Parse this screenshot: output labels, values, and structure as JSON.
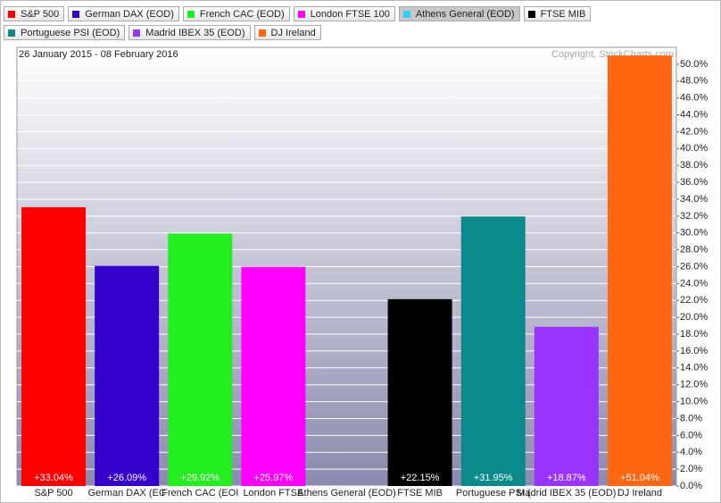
{
  "chart_data": {
    "type": "bar",
    "subtitle": "26 January 2015 - 08 February 2016",
    "credit": "Copyright, StockCharts.com",
    "legend": [
      {
        "name": "S&P 500",
        "color": "#ff0000"
      },
      {
        "name": "German DAX (EOD)",
        "color": "#3300cc"
      },
      {
        "name": "French CAC (EOD)",
        "color": "#22ee22"
      },
      {
        "name": "London FTSE 100",
        "color": "#ff00ff"
      },
      {
        "name": "Athens General (EOD)",
        "color": "#33ccff"
      },
      {
        "name": "FTSE MIB",
        "color": "#000000"
      },
      {
        "name": "Portuguese PSI (EOD)",
        "color": "#0a8a8a"
      },
      {
        "name": "Madrid IBEX 35 (EOD)",
        "color": "#9933ff"
      },
      {
        "name": "DJ Ireland",
        "color": "#ff6611"
      }
    ],
    "categories": [
      "S&P 500",
      "German DAX (EC",
      "French CAC (EOI",
      "London FTSE",
      "Athens General (EOD)",
      "FTSE MIB",
      "Portuguese PSI (",
      "Madrid IBEX 35 (EOD)",
      "DJ Ireland"
    ],
    "values": [
      33.04,
      26.09,
      29.92,
      25.97,
      null,
      22.15,
      31.95,
      18.87,
      51.04
    ],
    "value_labels": [
      "+33.04%",
      "+26.09%",
      "+29.92%",
      "+25.97%",
      null,
      "+22.15%",
      "+31.95%",
      "+18.87%",
      "+51.04%"
    ],
    "ylim": [
      0,
      52
    ],
    "yticks": [
      {
        "value": 0,
        "label": "0.0%"
      },
      {
        "value": 2,
        "label": "2.0%"
      },
      {
        "value": 4,
        "label": "4.0%"
      },
      {
        "value": 6,
        "label": "6.0%"
      },
      {
        "value": 8,
        "label": "8.0%"
      },
      {
        "value": 10,
        "label": "10.0%"
      },
      {
        "value": 12,
        "label": "12.0%"
      },
      {
        "value": 14,
        "label": "14.0%"
      },
      {
        "value": 16,
        "label": "16.0%"
      },
      {
        "value": 18,
        "label": "18.0%"
      },
      {
        "value": 20,
        "label": "20.0%"
      },
      {
        "value": 22,
        "label": "22.0%"
      },
      {
        "value": 24,
        "label": "24.0%"
      },
      {
        "value": 26,
        "label": "26.0%"
      },
      {
        "value": 28,
        "label": "28.0%"
      },
      {
        "value": 30,
        "label": "30.0%"
      },
      {
        "value": 32,
        "label": "32.0%"
      },
      {
        "value": 34,
        "label": "34.0%"
      },
      {
        "value": 36,
        "label": "36.0%"
      },
      {
        "value": 38,
        "label": "38.0%"
      },
      {
        "value": 40,
        "label": "40.0%"
      },
      {
        "value": 42,
        "label": "42.0%"
      },
      {
        "value": 44,
        "label": "44.0%"
      },
      {
        "value": 46,
        "label": "46.0%"
      },
      {
        "value": 48,
        "label": "48.0%"
      },
      {
        "value": 50,
        "label": "50.0%"
      }
    ],
    "grid": true,
    "selected_legend": 4
  }
}
